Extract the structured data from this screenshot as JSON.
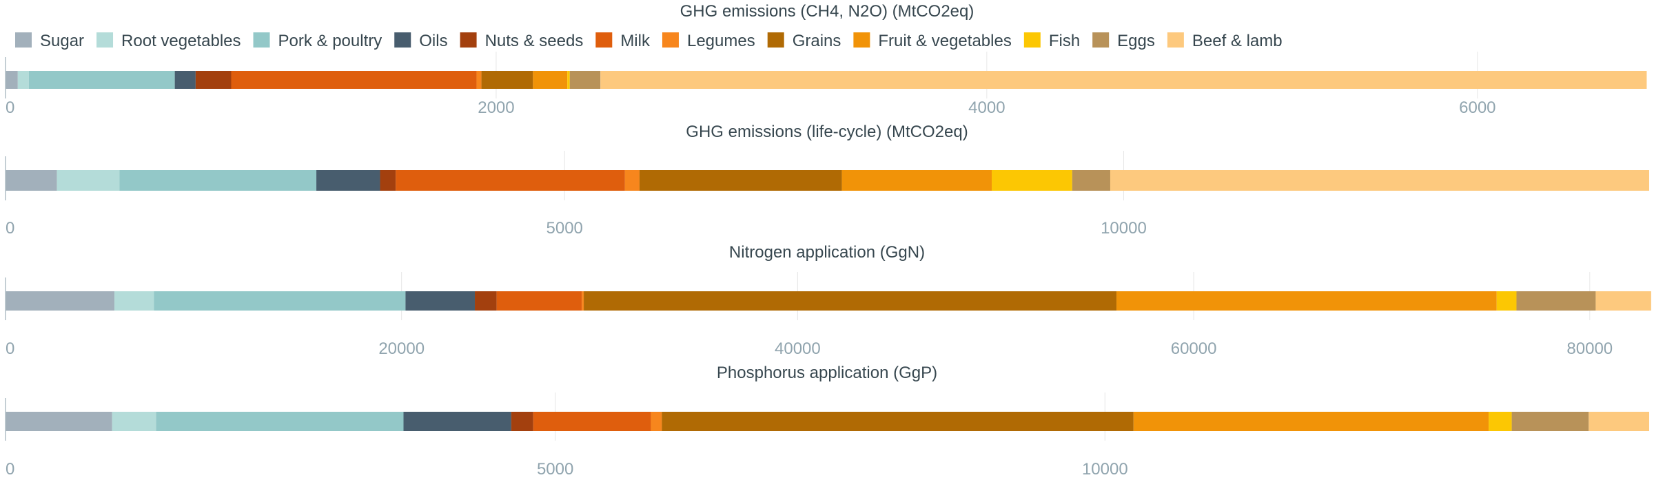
{
  "legend": [
    {
      "label": "Sugar",
      "color": "#a2b0bb"
    },
    {
      "label": "Root vegetables",
      "color": "#b4dcd9"
    },
    {
      "label": "Pork & poultry",
      "color": "#93c8c8"
    },
    {
      "label": "Oils",
      "color": "#485d6e"
    },
    {
      "label": "Nuts & seeds",
      "color": "#a3400e"
    },
    {
      "label": "Milk",
      "color": "#df5e0d"
    },
    {
      "label": "Legumes",
      "color": "#f7861d"
    },
    {
      "label": "Grains",
      "color": "#b06a04"
    },
    {
      "label": "Fruit & vegetables",
      "color": "#f19308"
    },
    {
      "label": "Fish",
      "color": "#fcc703"
    },
    {
      "label": "Eggs",
      "color": "#b89259"
    },
    {
      "label": "Beef & lamb",
      "color": "#fdc97e"
    }
  ],
  "chart_data": [
    {
      "type": "bar",
      "orientation": "horizontal",
      "stacked": true,
      "title": "GHG emissions (CH4, N2O) (MtCO2eq)",
      "xlim": [
        0,
        6700
      ],
      "xticks": [
        0,
        2000,
        4000,
        6000
      ],
      "xtick_labels": [
        "0",
        "2000",
        "4000",
        "6000"
      ],
      "grid": true,
      "series": [
        {
          "name": "Sugar",
          "values": [
            50
          ]
        },
        {
          "name": "Root vegetables",
          "values": [
            45
          ]
        },
        {
          "name": "Pork & poultry",
          "values": [
            595
          ]
        },
        {
          "name": "Oils",
          "values": [
            85
          ]
        },
        {
          "name": "Nuts & seeds",
          "values": [
            145
          ]
        },
        {
          "name": "Milk",
          "values": [
            1000
          ]
        },
        {
          "name": "Legumes",
          "values": [
            20
          ]
        },
        {
          "name": "Grains",
          "values": [
            210
          ]
        },
        {
          "name": "Fruit & vegetables",
          "values": [
            140
          ]
        },
        {
          "name": "Fish",
          "values": [
            10
          ]
        },
        {
          "name": "Eggs",
          "values": [
            125
          ]
        },
        {
          "name": "Beef & lamb",
          "values": [
            4265
          ]
        }
      ]
    },
    {
      "type": "bar",
      "orientation": "horizontal",
      "stacked": true,
      "title": "GHG emissions (life-cycle) (MtCO2eq)",
      "xlim": [
        0,
        14700
      ],
      "xticks": [
        0,
        5000,
        10000
      ],
      "xtick_labels": [
        "0",
        "5000",
        "10000"
      ],
      "grid": true,
      "series": [
        {
          "name": "Sugar",
          "values": [
            460
          ]
        },
        {
          "name": "Root vegetables",
          "values": [
            560
          ]
        },
        {
          "name": "Pork & poultry",
          "values": [
            1760
          ]
        },
        {
          "name": "Oils",
          "values": [
            570
          ]
        },
        {
          "name": "Nuts & seeds",
          "values": [
            140
          ]
        },
        {
          "name": "Milk",
          "values": [
            2050
          ]
        },
        {
          "name": "Legumes",
          "values": [
            130
          ]
        },
        {
          "name": "Grains",
          "values": [
            1810
          ]
        },
        {
          "name": "Fruit & vegetables",
          "values": [
            1340
          ]
        },
        {
          "name": "Fish",
          "values": [
            720
          ]
        },
        {
          "name": "Eggs",
          "values": [
            340
          ]
        },
        {
          "name": "Beef & lamb",
          "values": [
            4820
          ]
        }
      ]
    },
    {
      "type": "bar",
      "orientation": "horizontal",
      "stacked": true,
      "title": "Nitrogen application (GgN)",
      "xlim": [
        0,
        83000
      ],
      "xticks": [
        0,
        20000,
        40000,
        60000,
        80000
      ],
      "xtick_labels": [
        "0",
        "20000",
        "40000",
        "60000",
        "80000"
      ],
      "grid": true,
      "series": [
        {
          "name": "Sugar",
          "values": [
            5500
          ]
        },
        {
          "name": "Root vegetables",
          "values": [
            2000
          ]
        },
        {
          "name": "Pork & poultry",
          "values": [
            12700
          ]
        },
        {
          "name": "Oils",
          "values": [
            3500
          ]
        },
        {
          "name": "Nuts & seeds",
          "values": [
            1100
          ]
        },
        {
          "name": "Milk",
          "values": [
            4300
          ]
        },
        {
          "name": "Legumes",
          "values": [
            100
          ]
        },
        {
          "name": "Grains",
          "values": [
            26900
          ]
        },
        {
          "name": "Fruit & vegetables",
          "values": [
            19200
          ]
        },
        {
          "name": "Fish",
          "values": [
            1000
          ]
        },
        {
          "name": "Eggs",
          "values": [
            4000
          ]
        },
        {
          "name": "Beef & lamb",
          "values": [
            2800
          ]
        }
      ]
    },
    {
      "type": "bar",
      "orientation": "horizontal",
      "stacked": true,
      "title": "Phosphorus application (GgP)",
      "xlim": [
        0,
        14950
      ],
      "xticks": [
        0,
        5000,
        10000
      ],
      "xtick_labels": [
        "0",
        "5000",
        "10000"
      ],
      "grid": true,
      "series": [
        {
          "name": "Sugar",
          "values": [
            970
          ]
        },
        {
          "name": "Root vegetables",
          "values": [
            400
          ]
        },
        {
          "name": "Pork & poultry",
          "values": [
            2250
          ]
        },
        {
          "name": "Oils",
          "values": [
            980
          ]
        },
        {
          "name": "Nuts & seeds",
          "values": [
            200
          ]
        },
        {
          "name": "Milk",
          "values": [
            1070
          ]
        },
        {
          "name": "Legumes",
          "values": [
            100
          ]
        },
        {
          "name": "Grains",
          "values": [
            4290
          ]
        },
        {
          "name": "Fruit & vegetables",
          "values": [
            3230
          ]
        },
        {
          "name": "Fish",
          "values": [
            210
          ]
        },
        {
          "name": "Eggs",
          "values": [
            700
          ]
        },
        {
          "name": "Beef & lamb",
          "values": [
            550
          ]
        }
      ]
    }
  ]
}
